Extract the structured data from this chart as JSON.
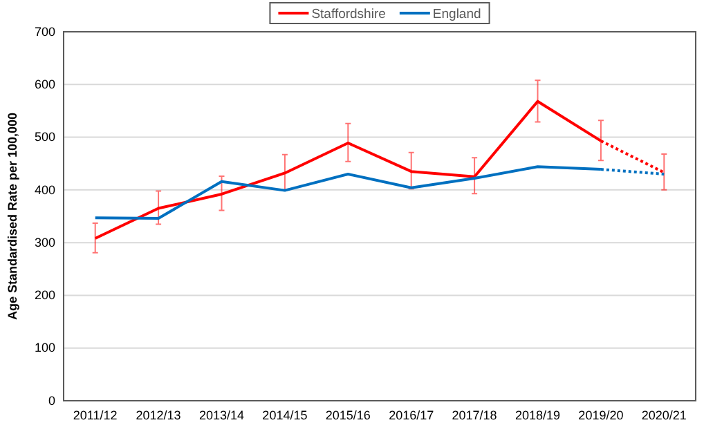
{
  "chart_data": {
    "type": "line",
    "ylabel": "Age Standardised Rate per 100,000",
    "categories": [
      "2011/12",
      "2012/13",
      "2013/14",
      "2014/15",
      "2015/16",
      "2016/17",
      "2017/18",
      "2018/19",
      "2019/20",
      "2020/21"
    ],
    "series": [
      {
        "name": "Staffordshire",
        "color": "#ff0000",
        "line_style": "solid",
        "values": [
          308,
          365,
          392,
          432,
          489,
          435,
          425,
          568,
          493,
          null
        ],
        "errors": [
          [
            281,
            337
          ],
          [
            335,
            398
          ],
          [
            361,
            426
          ],
          [
            400,
            467
          ],
          [
            454,
            526
          ],
          [
            402,
            471
          ],
          [
            393,
            461
          ],
          [
            529,
            608
          ],
          [
            456,
            532
          ],
          null
        ]
      },
      {
        "name": "England",
        "color": "#0070c0",
        "line_style": "solid",
        "values": [
          347,
          346,
          416,
          399,
          430,
          404,
          422,
          444,
          439,
          null
        ]
      },
      {
        "color": "#ff0000",
        "line_style": "dotted",
        "values": [
          null,
          null,
          null,
          null,
          null,
          null,
          null,
          null,
          493,
          433
        ],
        "errors": [
          null,
          null,
          null,
          null,
          null,
          null,
          null,
          null,
          null,
          [
            400,
            468
          ]
        ]
      },
      {
        "color": "#0070c0",
        "line_style": "dotted",
        "values": [
          null,
          null,
          null,
          null,
          null,
          null,
          null,
          null,
          439,
          430
        ]
      }
    ],
    "ylim": [
      0,
      700
    ],
    "yticks": [
      0,
      100,
      200,
      300,
      400,
      500,
      600,
      700
    ],
    "grid": "y",
    "legend": "top",
    "marker": "none"
  }
}
